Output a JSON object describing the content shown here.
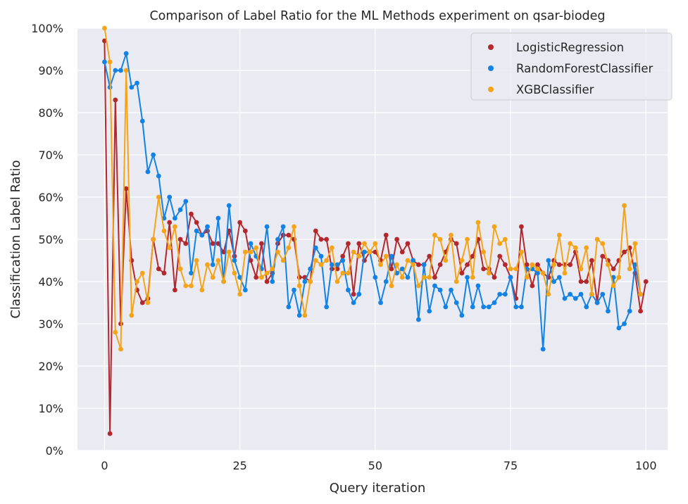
{
  "chart_data": {
    "type": "line",
    "title": "Comparison of Label Ratio for the ML Methods experiment on qsar-biodeg",
    "xlabel": "Query iteration",
    "ylabel": "Classification Label Ratio",
    "xlim": [
      -5,
      104
    ],
    "ylim": [
      0,
      100
    ],
    "x_ticks": [
      0,
      25,
      50,
      75,
      100
    ],
    "y_ticks": [
      0,
      10,
      20,
      30,
      40,
      50,
      60,
      70,
      80,
      90,
      100
    ],
    "y_tick_format": "percent",
    "grid": true,
    "legend_position": "top-right",
    "series": [
      {
        "name": "LogisticRegression",
        "color": "#b2282d",
        "values": [
          97,
          4,
          83,
          30,
          62,
          45,
          38,
          35,
          36,
          50,
          43,
          42,
          54,
          38,
          50,
          49,
          56,
          54,
          51,
          52,
          49,
          49,
          47,
          52,
          46,
          54,
          52,
          45,
          41,
          49,
          40,
          42,
          49,
          51,
          51,
          50,
          41,
          41,
          40,
          52,
          50,
          50,
          43,
          43,
          46,
          49,
          37,
          49,
          45,
          47,
          47,
          45,
          51,
          43,
          50,
          47,
          49,
          45,
          44,
          44,
          46,
          41,
          44,
          47,
          50,
          49,
          42,
          44,
          46,
          50,
          43,
          43,
          41,
          46,
          44,
          41,
          36,
          53,
          44,
          39,
          44,
          42,
          41,
          45,
          44,
          44,
          44,
          47,
          40,
          40,
          45,
          35,
          46,
          45,
          43,
          45,
          47,
          48,
          42,
          33,
          40
        ]
      },
      {
        "name": "RandomForestClassifier",
        "color": "#1382e5",
        "values": [
          92,
          86,
          90,
          90,
          94,
          86,
          87,
          78,
          66,
          70,
          65,
          55,
          60,
          55,
          57,
          59,
          42,
          52,
          51,
          53,
          44,
          55,
          40,
          58,
          45,
          41,
          38,
          49,
          46,
          43,
          53,
          40,
          50,
          53,
          34,
          38,
          32,
          40,
          43,
          48,
          46,
          34,
          44,
          44,
          45,
          38,
          35,
          37,
          47,
          47,
          41,
          35,
          40,
          46,
          42,
          43,
          41,
          45,
          31,
          44,
          33,
          39,
          38,
          34,
          38,
          35,
          32,
          41,
          34,
          39,
          34,
          34,
          35,
          37,
          37,
          41,
          34,
          34,
          43,
          43,
          42,
          24,
          45,
          40,
          41,
          36,
          37,
          36,
          37,
          34,
          37,
          35,
          37,
          33,
          41,
          29,
          30,
          33,
          44,
          37
        ]
      },
      {
        "name": "XGBClassifier",
        "color": "#f4a418",
        "values": [
          100,
          92,
          28,
          24,
          90,
          32,
          40,
          42,
          35,
          50,
          60,
          52,
          48,
          53,
          43,
          39,
          39,
          45,
          38,
          44,
          41,
          45,
          40,
          47,
          42,
          37,
          47,
          47,
          48,
          41,
          42,
          43,
          47,
          45,
          48,
          53,
          39,
          32,
          40,
          45,
          44,
          45,
          48,
          40,
          42,
          42,
          47,
          46,
          49,
          47,
          49,
          44,
          46,
          39,
          44,
          41,
          45,
          44,
          39,
          41,
          41,
          51,
          50,
          45,
          51,
          40,
          45,
          50,
          41,
          54,
          47,
          42,
          53,
          49,
          50,
          43,
          43,
          47,
          41,
          44,
          43,
          42,
          37,
          44,
          51,
          42,
          49,
          48,
          43,
          48,
          37,
          50,
          49,
          44,
          39,
          41,
          58,
          43,
          49,
          37
        ]
      }
    ]
  }
}
